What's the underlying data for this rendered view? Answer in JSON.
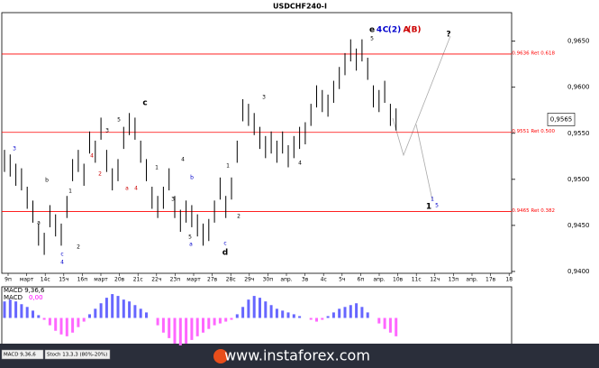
{
  "chart_data": [
    {
      "type": "ohlc",
      "title": "USDCHF240-I",
      "high": [
        0.9532,
        0.9527,
        0.9517,
        0.9512,
        0.9492,
        0.9477,
        0.9452,
        0.9442,
        0.9472,
        0.9462,
        0.9452,
        0.9482,
        0.9522,
        0.9532,
        0.9517,
        0.9552,
        0.9542,
        0.9567,
        0.9532,
        0.9512,
        0.9522,
        0.9557,
        0.9572,
        0.9567,
        0.9542,
        0.9522,
        0.9492,
        0.9482,
        0.9492,
        0.9512,
        0.9482,
        0.9467,
        0.9477,
        0.9472,
        0.9462,
        0.9452,
        0.9457,
        0.9477,
        0.9502,
        0.9482,
        0.9502,
        0.9542,
        0.9587,
        0.9582,
        0.9572,
        0.9557,
        0.9547,
        0.9552,
        0.9542,
        0.9552,
        0.9537,
        0.9547,
        0.9557,
        0.9562,
        0.9582,
        0.9602,
        0.9597,
        0.9592,
        0.9607,
        0.9622,
        0.9637,
        0.9652,
        0.9642,
        0.9652,
        0.9632,
        0.9602,
        0.9597,
        0.9607,
        0.9582,
        0.9577
      ],
      "low": [
        0.9508,
        0.9503,
        0.9493,
        0.9488,
        0.9468,
        0.9453,
        0.9428,
        0.9418,
        0.9448,
        0.9438,
        0.9428,
        0.9458,
        0.9498,
        0.9508,
        0.9493,
        0.9528,
        0.9518,
        0.9543,
        0.9508,
        0.9488,
        0.9498,
        0.9533,
        0.9548,
        0.9543,
        0.9518,
        0.9498,
        0.9468,
        0.9458,
        0.9468,
        0.9488,
        0.9458,
        0.9443,
        0.9453,
        0.9448,
        0.9438,
        0.9428,
        0.9433,
        0.9453,
        0.9478,
        0.9458,
        0.9478,
        0.9518,
        0.9563,
        0.9558,
        0.9548,
        0.9533,
        0.9523,
        0.9528,
        0.9518,
        0.9528,
        0.9513,
        0.9523,
        0.9533,
        0.9538,
        0.9558,
        0.9578,
        0.9573,
        0.9568,
        0.9583,
        0.9598,
        0.9613,
        0.9628,
        0.9618,
        0.9628,
        0.9608,
        0.9578,
        0.9573,
        0.9583,
        0.9558,
        0.9553
      ],
      "color": "#000000",
      "ylim": [
        0.9398,
        0.968
      ],
      "yticks": [
        {
          "value": 0.965,
          "label": "0,9650"
        },
        {
          "value": 0.96,
          "label": "0,9600"
        },
        {
          "value": 0.955,
          "label": "0,9550"
        },
        {
          "value": 0.95,
          "label": "0,9500"
        },
        {
          "value": 0.945,
          "label": "0,9450"
        },
        {
          "value": 0.94,
          "label": "0,9400"
        }
      ],
      "current_price": {
        "value": 0.9565,
        "label": "0,9565"
      },
      "levels": [
        {
          "value": 0.9636,
          "label": "0.9636 Ret 0.618"
        },
        {
          "value": 0.9551,
          "label": "0.9551 Ret 0.500"
        },
        {
          "value": 0.9465,
          "label": "0.9465 Ret 0.382"
        }
      ],
      "level_color": "#ff0000",
      "xtick_labels": [
        "9п",
        "март",
        "14с",
        "15ч",
        "16п",
        "март",
        "20в",
        "21с",
        "22ч",
        "23п",
        "март",
        "27в",
        "28с",
        "29ч",
        "30п",
        "апр.",
        "3в",
        "4с",
        "5ч",
        "6п",
        "апр.",
        "10в",
        "11с",
        "12ч",
        "13п",
        "апр.",
        "17в",
        "18"
      ],
      "annotations": [
        {
          "text": "e",
          "color": "#000000"
        },
        {
          "text": "4",
          "color": "#0000cc"
        },
        {
          "text": "C",
          "color": "#0000cc"
        },
        {
          "text": "(2)",
          "color": "#0000cc"
        },
        {
          "text": "A",
          "color": "#cc0000"
        },
        {
          "text": "(B)",
          "color": "#cc0000"
        },
        {
          "text": "5",
          "color": "#000000"
        },
        {
          "text": "?",
          "color": "#000000"
        },
        {
          "text": "3",
          "color": "#0000cc"
        },
        {
          "text": "b",
          "color": "#000000"
        },
        {
          "text": "a",
          "color": "#000000"
        },
        {
          "text": "1",
          "color": "#000000"
        },
        {
          "text": "2",
          "color": "#000000"
        },
        {
          "text": "c",
          "color": "#0000cc"
        },
        {
          "text": "4",
          "color": "#0000cc"
        },
        {
          "text": "4",
          "color": "#cc0000"
        },
        {
          "text": "2",
          "color": "#cc0000"
        },
        {
          "text": "3",
          "color": "#000000"
        },
        {
          "text": "5",
          "color": "#000000"
        },
        {
          "text": "c",
          "color": "#000000"
        },
        {
          "text": "a",
          "color": "#cc0000"
        },
        {
          "text": "4",
          "color": "#cc0000"
        },
        {
          "text": "1",
          "color": "#000000"
        },
        {
          "text": "4",
          "color": "#000000"
        },
        {
          "text": "b",
          "color": "#0000cc"
        },
        {
          "text": "3",
          "color": "#000000"
        },
        {
          "text": "5",
          "color": "#000000"
        },
        {
          "text": "a",
          "color": "#0000cc"
        },
        {
          "text": "1",
          "color": "#000000"
        },
        {
          "text": "2",
          "color": "#000000"
        },
        {
          "text": "c",
          "color": "#0000cc"
        },
        {
          "text": "d",
          "color": "#000000"
        },
        {
          "text": "3",
          "color": "#000000"
        },
        {
          "text": "4",
          "color": "#000000"
        },
        {
          "text": "1",
          "color": "#0000cc"
        },
        {
          "text": "1",
          "color": "#000000"
        },
        {
          "text": "5",
          "color": "#0000cc"
        }
      ]
    },
    {
      "type": "histogram-bars",
      "title": "MACD 9,36,6",
      "current_label": "MACD",
      "current_value": "0,00",
      "values": [
        18,
        20,
        18,
        15,
        12,
        8,
        3,
        -2,
        -8,
        -14,
        -18,
        -20,
        -16,
        -10,
        -4,
        4,
        10,
        16,
        22,
        26,
        24,
        20,
        18,
        14,
        10,
        6,
        0,
        -8,
        -16,
        -22,
        -28,
        -30,
        -28,
        -24,
        -20,
        -16,
        -12,
        -8,
        -6,
        -4,
        -2,
        4,
        12,
        20,
        24,
        22,
        18,
        14,
        10,
        8,
        6,
        4,
        2,
        0,
        -2,
        -4,
        -2,
        2,
        6,
        10,
        12,
        14,
        16,
        12,
        6,
        0,
        -6,
        -12,
        -16,
        -20
      ],
      "ylim": [
        -30,
        30
      ],
      "positive_color": "#6666ff",
      "negative_color": "#ff66ff",
      "tabs": [
        "MACD 9,36,6",
        "Stoch 13,3,3 (80%-20%)"
      ]
    }
  ],
  "watermark": "www.instaforex.com"
}
